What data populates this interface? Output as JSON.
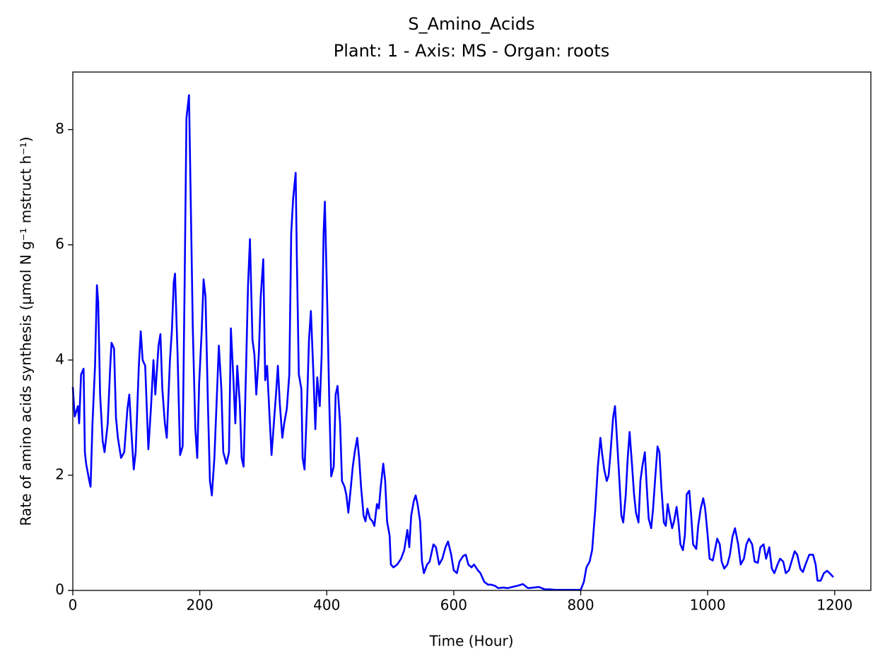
{
  "chart_data": {
    "type": "line",
    "title": "S_Amino_Acids",
    "subtitle": "Plant: 1 - Axis: MS - Organ: roots",
    "x_label": "Time (Hour)",
    "y_label": "Rate of amino acids synthesis (μmol N g⁻¹ mstruct h⁻¹)",
    "xlim": [
      0,
      1257
    ],
    "ylim": [
      0,
      9
    ],
    "xticks": [
      0,
      200,
      400,
      600,
      800,
      1000,
      1200
    ],
    "yticks": [
      0,
      2,
      4,
      6,
      8
    ],
    "grid": false,
    "series": [
      {
        "color": "#0000ff",
        "x": [
          0,
          3,
          8,
          10,
          13,
          17,
          19,
          21,
          26,
          28,
          31,
          35,
          38,
          40,
          43,
          47,
          50,
          55,
          59,
          61,
          65,
          68,
          71,
          76,
          81,
          86,
          89,
          92,
          96,
          99,
          104,
          107,
          110,
          114,
          119,
          123,
          127,
          130,
          135,
          138,
          141,
          145,
          148,
          153,
          156,
          159,
          161,
          165,
          169,
          173,
          176,
          179,
          183,
          186,
          189,
          193,
          196,
          199,
          203,
          206,
          209,
          213,
          216,
          219,
          223,
          227,
          230,
          234,
          237,
          242,
          246,
          249,
          253,
          256,
          259,
          263,
          266,
          269,
          273,
          276,
          279,
          283,
          286,
          289,
          293,
          296,
          300,
          303,
          306,
          310,
          313,
          316,
          320,
          323,
          326,
          330,
          333,
          337,
          341,
          344,
          347,
          351,
          353,
          356,
          360,
          362,
          365,
          369,
          372,
          375,
          379,
          382,
          385,
          389,
          392,
          395,
          397,
          401,
          404,
          407,
          411,
          414,
          417,
          421,
          424,
          428,
          431,
          434,
          438,
          441,
          444,
          448,
          451,
          454,
          458,
          461,
          464,
          468,
          472,
          475,
          479,
          482,
          485,
          489,
          492,
          495,
          499,
          501,
          505,
          511,
          517,
          522,
          527,
          530,
          533,
          537,
          540,
          543,
          547,
          550,
          553,
          558,
          562,
          568,
          572,
          577,
          582,
          587,
          591,
          596,
          600,
          605,
          609,
          615,
          619,
          623,
          628,
          632,
          638,
          642,
          648,
          654,
          659,
          665,
          670,
          678,
          685,
          692,
          700,
          709,
          717,
          726,
          734,
          743,
          751,
          759,
          770,
          782,
          793,
          800,
          805,
          809,
          814,
          818,
          823,
          827,
          831,
          834,
          837,
          841,
          844,
          847,
          851,
          854,
          857,
          861,
          864,
          867,
          871,
          874,
          877,
          881,
          884,
          887,
          891,
          894,
          897,
          901,
          904,
          907,
          911,
          914,
          917,
          921,
          924,
          927,
          931,
          934,
          937,
          941,
          944,
          947,
          951,
          954,
          957,
          961,
          964,
          967,
          971,
          974,
          977,
          982,
          985,
          989,
          993,
          996,
          1000,
          1003,
          1008,
          1011,
          1015,
          1019,
          1022,
          1026,
          1031,
          1035,
          1039,
          1043,
          1048,
          1052,
          1057,
          1061,
          1065,
          1070,
          1074,
          1079,
          1083,
          1088,
          1092,
          1097,
          1101,
          1105,
          1110,
          1114,
          1119,
          1123,
          1128,
          1132,
          1137,
          1141,
          1146,
          1150,
          1154,
          1160,
          1166,
          1170,
          1173,
          1178,
          1183,
          1188,
          1192,
          1198
        ],
        "values": [
          3.53,
          3.02,
          3.2,
          2.9,
          3.75,
          3.85,
          2.4,
          2.2,
          1.9,
          1.8,
          2.9,
          3.9,
          5.3,
          5.0,
          3.4,
          2.6,
          2.4,
          2.9,
          3.9,
          4.3,
          4.2,
          3.0,
          2.65,
          2.3,
          2.4,
          3.15,
          3.4,
          2.8,
          2.1,
          2.4,
          3.9,
          4.5,
          4.0,
          3.9,
          2.45,
          3.15,
          4.0,
          3.4,
          4.25,
          4.45,
          3.5,
          2.9,
          2.65,
          4.0,
          4.5,
          5.35,
          5.5,
          4.1,
          2.35,
          2.5,
          5.2,
          8.2,
          8.6,
          6.6,
          4.55,
          2.8,
          2.3,
          3.6,
          4.5,
          5.4,
          5.1,
          3.15,
          1.9,
          1.65,
          2.3,
          3.4,
          4.25,
          3.5,
          2.4,
          2.2,
          2.4,
          4.55,
          3.65,
          2.9,
          3.9,
          3.25,
          2.3,
          2.15,
          3.9,
          5.3,
          6.1,
          4.35,
          4.1,
          3.4,
          4.1,
          5.1,
          5.75,
          3.65,
          3.9,
          3.0,
          2.35,
          2.8,
          3.4,
          3.9,
          3.25,
          2.65,
          2.9,
          3.15,
          3.75,
          6.2,
          6.8,
          7.25,
          5.7,
          3.75,
          3.5,
          2.3,
          2.1,
          3.25,
          4.35,
          4.85,
          3.75,
          2.8,
          3.7,
          3.2,
          4.1,
          6.2,
          6.75,
          4.85,
          3.25,
          1.98,
          2.15,
          3.4,
          3.55,
          2.9,
          1.9,
          1.8,
          1.65,
          1.35,
          1.8,
          2.15,
          2.4,
          2.65,
          2.3,
          1.8,
          1.3,
          1.2,
          1.42,
          1.25,
          1.2,
          1.12,
          1.5,
          1.42,
          1.8,
          2.2,
          1.9,
          1.2,
          0.95,
          0.45,
          0.4,
          0.45,
          0.55,
          0.7,
          1.05,
          0.75,
          1.3,
          1.55,
          1.65,
          1.5,
          1.2,
          0.5,
          0.3,
          0.45,
          0.5,
          0.8,
          0.75,
          0.45,
          0.55,
          0.75,
          0.85,
          0.62,
          0.35,
          0.3,
          0.5,
          0.6,
          0.62,
          0.45,
          0.4,
          0.45,
          0.35,
          0.3,
          0.15,
          0.1,
          0.1,
          0.08,
          0.04,
          0.05,
          0.04,
          0.06,
          0.08,
          0.11,
          0.04,
          0.05,
          0.06,
          0.02,
          0.02,
          0.01,
          0.01,
          0.01,
          0.01,
          0.01,
          0.15,
          0.4,
          0.5,
          0.7,
          1.42,
          2.15,
          2.65,
          2.35,
          2.1,
          1.9,
          2.0,
          2.4,
          3.0,
          3.2,
          2.65,
          1.9,
          1.3,
          1.18,
          1.67,
          2.3,
          2.75,
          2.15,
          1.67,
          1.35,
          1.18,
          1.9,
          2.15,
          2.4,
          1.8,
          1.25,
          1.08,
          1.42,
          1.9,
          2.5,
          2.4,
          1.8,
          1.18,
          1.12,
          1.5,
          1.25,
          1.08,
          1.2,
          1.45,
          1.18,
          0.8,
          0.7,
          0.95,
          1.67,
          1.73,
          1.3,
          0.8,
          0.72,
          1.12,
          1.42,
          1.6,
          1.42,
          0.95,
          0.55,
          0.52,
          0.68,
          0.9,
          0.8,
          0.5,
          0.38,
          0.45,
          0.62,
          0.93,
          1.08,
          0.8,
          0.45,
          0.55,
          0.8,
          0.9,
          0.8,
          0.5,
          0.48,
          0.75,
          0.8,
          0.55,
          0.75,
          0.38,
          0.3,
          0.45,
          0.55,
          0.5,
          0.3,
          0.35,
          0.5,
          0.68,
          0.62,
          0.37,
          0.32,
          0.45,
          0.62,
          0.62,
          0.45,
          0.17,
          0.17,
          0.3,
          0.34,
          0.3,
          0.23
        ]
      }
    ]
  }
}
